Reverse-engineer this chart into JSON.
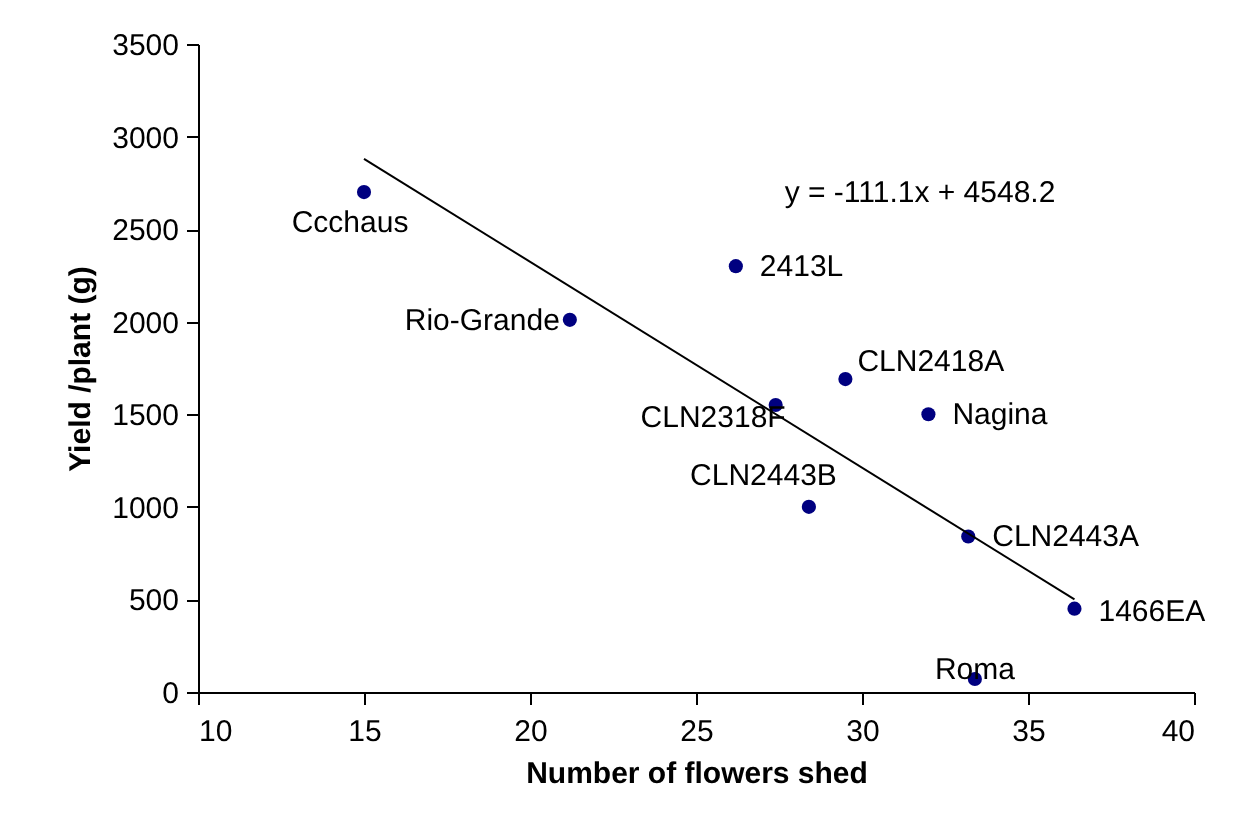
{
  "chart_data": {
    "type": "scatter",
    "xlabel": "Number of flowers shed",
    "ylabel": "Yield /plant (g)",
    "xlim": [
      10,
      40
    ],
    "xticks": [
      10,
      15,
      20,
      25,
      30,
      35,
      40
    ],
    "ylim": [
      0,
      3500
    ],
    "yticks": [
      0,
      500,
      1000,
      1500,
      2000,
      2500,
      3000,
      3500
    ],
    "grid": false,
    "legend": false,
    "marker": "circle",
    "annotations": [
      "y = -111.1x + 4548.2"
    ],
    "series": [
      {
        "name": "Ccchaus",
        "color": "#000080",
        "x": [
          15.0
        ],
        "values": [
          2700
        ]
      },
      {
        "name": "Rio-Grande",
        "color": "#000080",
        "x": [
          21.2
        ],
        "values": [
          2010
        ]
      },
      {
        "name": "2413L",
        "color": "#000080",
        "x": [
          26.2
        ],
        "values": [
          2300
        ]
      },
      {
        "name": "CLN2418A",
        "color": "#000080",
        "x": [
          29.5
        ],
        "values": [
          1690
        ]
      },
      {
        "name": "CLN2318F",
        "color": "#000080",
        "x": [
          27.4
        ],
        "values": [
          1550
        ]
      },
      {
        "name": "Nagina",
        "color": "#000080",
        "x": [
          32.0
        ],
        "values": [
          1500
        ]
      },
      {
        "name": "CLN2443B",
        "color": "#000080",
        "x": [
          28.4
        ],
        "values": [
          1000
        ]
      },
      {
        "name": "CLN2443A",
        "color": "#000080",
        "x": [
          33.2
        ],
        "values": [
          840
        ]
      },
      {
        "name": "1466EA",
        "color": "#000080",
        "x": [
          36.4
        ],
        "values": [
          450
        ]
      },
      {
        "name": "Roma",
        "color": "#000080",
        "x": [
          33.4
        ],
        "values": [
          70
        ]
      },
      {
        "type": "line",
        "color": "#000000",
        "line_style": "solid",
        "marker": "none",
        "x": [
          15,
          36.4
        ],
        "values": [
          2880,
          500
        ]
      }
    ]
  }
}
